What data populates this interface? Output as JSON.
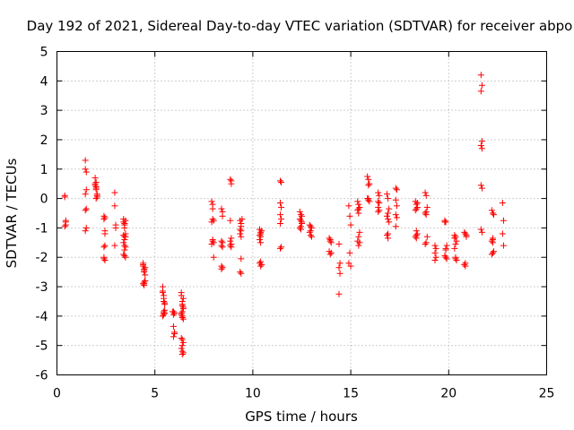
{
  "chart_data": {
    "type": "scatter",
    "title": "Day 192 of 2021, Sidereal Day-to-day VTEC variation (SDTVAR) for receiver abpo",
    "xlabel": "GPS time / hours",
    "ylabel": "SDTVAR / TECUs",
    "xlim": [
      0,
      25
    ],
    "ylim": [
      -6,
      5
    ],
    "xticks": [
      0,
      5,
      10,
      15,
      20,
      25
    ],
    "yticks": [
      -6,
      -5,
      -4,
      -3,
      -2,
      -1,
      0,
      1,
      2,
      3,
      4,
      5
    ],
    "grid": true,
    "marker": "plus",
    "color": "#ff0000",
    "series": [
      {
        "name": "SDTVAR",
        "x": [
          0.4,
          0.4,
          0.45,
          0.45,
          0.4,
          0.45,
          1.45,
          1.45,
          1.5,
          1.5,
          1.45,
          1.5,
          1.45,
          1.5,
          1.45,
          1.95,
          1.95,
          2.0,
          2.0,
          2.05,
          2.05,
          2.0,
          1.95,
          2.0,
          2.05,
          2.0,
          2.4,
          2.4,
          2.45,
          2.45,
          2.45,
          2.4,
          2.4,
          2.45,
          2.4,
          2.45,
          2.95,
          2.95,
          3.0,
          3.0,
          2.95,
          3.4,
          3.4,
          3.45,
          3.45,
          3.5,
          3.5,
          3.45,
          3.4,
          3.45,
          3.5,
          3.45,
          3.4,
          3.45,
          3.5,
          3.45,
          3.4,
          3.45,
          3.5,
          4.4,
          4.4,
          4.45,
          4.45,
          4.5,
          4.5,
          4.45,
          4.4,
          4.45,
          4.5,
          4.45,
          4.4,
          4.45,
          4.5,
          5.4,
          5.4,
          5.45,
          5.45,
          5.5,
          5.5,
          5.45,
          5.4,
          5.45,
          5.5,
          5.45,
          5.4,
          5.45,
          5.5,
          5.9,
          5.95,
          6.0,
          5.95,
          6.0,
          5.95,
          6.0,
          5.95,
          6.35,
          6.35,
          6.4,
          6.4,
          6.45,
          6.45,
          6.4,
          6.35,
          6.4,
          6.45,
          6.4,
          6.35,
          6.4,
          6.45,
          6.4,
          6.35,
          6.4,
          6.45,
          6.4,
          6.35,
          6.4,
          6.45,
          7.9,
          7.95,
          7.95,
          8.0,
          7.9,
          7.95,
          8.0,
          7.95,
          8.0,
          7.9,
          7.95,
          8.4,
          8.45,
          8.45,
          8.4,
          8.45,
          8.4,
          8.45,
          8.4,
          8.45,
          8.4,
          8.85,
          8.9,
          8.9,
          8.85,
          8.9,
          8.85,
          8.9,
          8.85,
          8.9,
          9.35,
          9.4,
          9.4,
          9.35,
          9.4,
          9.35,
          9.4,
          9.45,
          9.4,
          9.35,
          9.4,
          10.35,
          10.4,
          10.4,
          10.35,
          10.4,
          10.35,
          10.4,
          10.45,
          10.4,
          10.35,
          10.4,
          10.45,
          11.4,
          11.45,
          11.4,
          11.45,
          11.4,
          11.45,
          11.4,
          11.45,
          11.4,
          12.4,
          12.45,
          12.5,
          12.4,
          12.45,
          12.5,
          12.45,
          12.4,
          12.45,
          12.5,
          12.9,
          12.95,
          13.0,
          12.95,
          12.9,
          12.95,
          13.0,
          13.9,
          13.95,
          14.0,
          13.95,
          13.9,
          13.95,
          14.0,
          14.4,
          14.45,
          14.4,
          14.45,
          14.4,
          14.9,
          14.95,
          15.0,
          14.95,
          14.9,
          15.0,
          15.35,
          15.4,
          15.45,
          15.4,
          15.35,
          15.4,
          15.45,
          15.4,
          15.35,
          15.45,
          15.4,
          15.85,
          15.9,
          15.95,
          15.9,
          15.85,
          15.9,
          15.95,
          15.9,
          16.4,
          16.45,
          16.4,
          16.45,
          16.4,
          16.45,
          16.4,
          16.85,
          16.9,
          16.95,
          16.9,
          16.85,
          16.9,
          16.95,
          16.9,
          16.85,
          16.9,
          17.3,
          17.35,
          17.3,
          17.35,
          17.3,
          17.35,
          17.3,
          18.3,
          18.35,
          18.4,
          18.35,
          18.3,
          18.35,
          18.4,
          18.35,
          18.3,
          18.35,
          18.4,
          18.8,
          18.85,
          18.9,
          18.85,
          18.8,
          18.85,
          18.9,
          18.85,
          18.8,
          19.3,
          19.35,
          19.3,
          19.35,
          19.3,
          19.8,
          19.85,
          19.9,
          19.85,
          19.8,
          19.85,
          19.9,
          19.85,
          19.8,
          20.3,
          20.35,
          20.4,
          20.35,
          20.3,
          20.35,
          20.4,
          20.35,
          20.3,
          20.8,
          20.85,
          20.9,
          20.85,
          20.8,
          20.85,
          20.9,
          21.65,
          21.7,
          21.65,
          21.7,
          21.65,
          21.7,
          21.65,
          21.7,
          21.65,
          21.7,
          22.2,
          22.25,
          22.3,
          22.25,
          22.2,
          22.25,
          22.3,
          22.25,
          22.2,
          22.25,
          22.75,
          22.8,
          22.75,
          22.8
        ],
        "y": [
          0.1,
          0.05,
          -0.8,
          -0.9,
          -0.95,
          -0.75,
          1.3,
          1.0,
          0.9,
          0.3,
          0.15,
          -0.35,
          -0.4,
          -1.0,
          -1.1,
          0.7,
          0.5,
          0.4,
          0.3,
          0.1,
          0.05,
          -0.0,
          0.45,
          0.55,
          0.15,
          0.35,
          -0.6,
          -0.7,
          -1.1,
          -1.2,
          -1.6,
          -1.65,
          -2.0,
          -2.1,
          -2.05,
          -0.65,
          0.2,
          -0.25,
          -0.9,
          -1.0,
          -1.6,
          -0.7,
          -0.8,
          -0.9,
          -1.0,
          -1.2,
          -1.3,
          -1.4,
          -1.5,
          -1.6,
          -1.65,
          -1.75,
          -1.9,
          -1.95,
          -2.0,
          -1.3,
          -1.25,
          -0.85,
          -0.75,
          -2.2,
          -2.3,
          -2.4,
          -2.5,
          -2.6,
          -2.8,
          -2.85,
          -2.9,
          -2.95,
          -2.35,
          -2.45,
          -2.25,
          -2.9,
          -2.8,
          -3.0,
          -3.2,
          -3.3,
          -3.5,
          -3.55,
          -3.8,
          -3.9,
          -4.0,
          -3.95,
          -3.6,
          -3.4,
          -3.15,
          -3.85,
          -3.9,
          -3.85,
          -3.95,
          -3.9,
          -4.35,
          -4.6,
          -4.7,
          -4.55,
          -3.85,
          -3.2,
          -3.3,
          -3.5,
          -3.6,
          -3.7,
          -3.75,
          -3.85,
          -3.9,
          -4.0,
          -4.1,
          -4.05,
          -3.95,
          -4.8,
          -4.9,
          -5.0,
          -5.1,
          -5.2,
          -5.25,
          -5.3,
          -4.75,
          -3.65,
          -3.4,
          -0.1,
          -0.2,
          -0.35,
          -0.75,
          -0.8,
          -1.4,
          -1.5,
          -1.45,
          -2.0,
          -1.55,
          -0.7,
          -0.35,
          -0.45,
          -0.6,
          -1.45,
          -1.5,
          -1.6,
          -1.65,
          -2.3,
          -2.35,
          -2.4,
          0.65,
          0.6,
          0.5,
          -0.75,
          -1.35,
          -1.45,
          -1.55,
          -1.6,
          -1.65,
          -0.75,
          -0.85,
          -0.95,
          -1.05,
          -1.1,
          -1.2,
          -1.3,
          -0.7,
          -2.05,
          -2.5,
          -2.55,
          -1.05,
          -1.15,
          -1.2,
          -1.25,
          -1.3,
          -1.4,
          -1.5,
          -1.1,
          -2.15,
          -2.2,
          -2.3,
          -2.25,
          0.6,
          0.55,
          -0.15,
          -0.3,
          -0.55,
          -0.7,
          -0.85,
          -1.65,
          -1.7,
          -0.45,
          -0.55,
          -0.6,
          -0.7,
          -0.75,
          -0.85,
          -0.95,
          -1.0,
          -1.05,
          -0.8,
          -0.9,
          -0.95,
          -1.0,
          -1.1,
          -1.15,
          -1.25,
          -1.3,
          -1.35,
          -1.4,
          -1.5,
          -1.45,
          -1.8,
          -1.9,
          -1.85,
          -1.55,
          -2.2,
          -2.35,
          -2.55,
          -3.25,
          -0.25,
          -0.6,
          -0.9,
          -1.85,
          -2.2,
          -2.3,
          -0.1,
          -0.2,
          -0.3,
          -0.35,
          -0.4,
          -0.5,
          -1.15,
          -1.3,
          -1.45,
          -1.5,
          -1.6,
          0.75,
          0.65,
          0.5,
          0.45,
          0.0,
          -0.05,
          -0.1,
          0.0,
          0.2,
          0.1,
          -0.1,
          -0.15,
          -0.3,
          -0.4,
          -0.45,
          0.15,
          0.0,
          -0.35,
          -0.5,
          -0.6,
          -0.7,
          -0.8,
          -1.2,
          -1.25,
          -1.35,
          0.35,
          0.3,
          -0.05,
          -0.25,
          -0.55,
          -0.65,
          -0.95,
          -0.1,
          -0.2,
          -0.3,
          -0.35,
          -0.4,
          -1.1,
          -1.2,
          -1.25,
          -1.3,
          -1.35,
          -0.15,
          0.2,
          0.1,
          -0.3,
          -0.45,
          -0.5,
          -0.55,
          -1.3,
          -1.5,
          -1.55,
          -1.6,
          -1.7,
          -1.85,
          -2.0,
          -2.1,
          -0.75,
          -0.8,
          -1.6,
          -1.75,
          -1.95,
          -2.0,
          -2.05,
          -1.7,
          -0.8,
          -1.25,
          -1.3,
          -1.45,
          -1.55,
          -1.7,
          -2.0,
          -2.1,
          -2.05,
          -1.35,
          -1.15,
          -1.2,
          -1.3,
          -2.2,
          -2.25,
          -2.3,
          -1.25,
          4.2,
          3.85,
          3.65,
          1.95,
          1.8,
          1.7,
          0.45,
          0.35,
          -1.05,
          -1.15,
          -0.4,
          -0.5,
          -0.55,
          -1.35,
          -1.45,
          -1.5,
          -1.8,
          -1.85,
          -1.9,
          -1.4,
          -0.15,
          -0.75,
          -1.2,
          -1.6
        ]
      }
    ]
  }
}
